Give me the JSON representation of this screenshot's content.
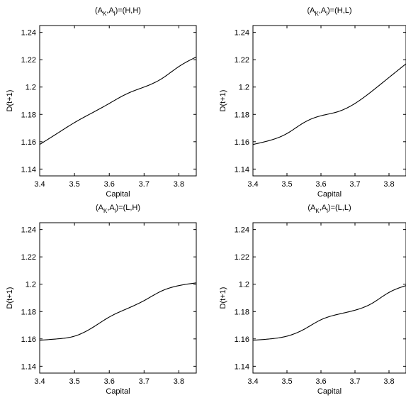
{
  "chart_data": [
    {
      "type": "line",
      "title": {
        "pre": "(A",
        "sub1": "K",
        "mid": ",A",
        "sub2": "l",
        "post": ")=(H,H)"
      },
      "xlabel": "Capital",
      "ylabel": "D(t+1)",
      "xlim": [
        3.4,
        3.85
      ],
      "ylim": [
        1.135,
        1.245
      ],
      "xticks": [
        "3.4",
        "3.5",
        "3.6",
        "3.7",
        "3.8"
      ],
      "yticks": [
        "1.14",
        "1.16",
        "1.18",
        "1.2",
        "1.22",
        "1.24"
      ],
      "grid": false,
      "series": [
        {
          "x": [
            3.4,
            3.45,
            3.5,
            3.55,
            3.6,
            3.65,
            3.7,
            3.75,
            3.8,
            3.85
          ],
          "y": [
            1.158,
            1.166,
            1.174,
            1.181,
            1.188,
            1.195,
            1.2,
            1.206,
            1.215,
            1.222
          ]
        }
      ]
    },
    {
      "type": "line",
      "title": {
        "pre": "(A",
        "sub1": "K",
        "mid": ",A",
        "sub2": "l",
        "post": ")=(H,L)"
      },
      "xlabel": "Capital",
      "ylabel": "D(t+1)",
      "xlim": [
        3.4,
        3.85
      ],
      "ylim": [
        1.135,
        1.245
      ],
      "xticks": [
        "3.4",
        "3.5",
        "3.6",
        "3.7",
        "3.8"
      ],
      "yticks": [
        "1.14",
        "1.16",
        "1.18",
        "1.2",
        "1.22",
        "1.24"
      ],
      "grid": false,
      "series": [
        {
          "x": [
            3.4,
            3.45,
            3.5,
            3.55,
            3.6,
            3.65,
            3.7,
            3.75,
            3.8,
            3.85
          ],
          "y": [
            1.158,
            1.161,
            1.166,
            1.174,
            1.179,
            1.182,
            1.188,
            1.197,
            1.207,
            1.217
          ]
        }
      ]
    },
    {
      "type": "line",
      "title": {
        "pre": "(A",
        "sub1": "K",
        "mid": ",A",
        "sub2": "l",
        "post": ")=(L,H)"
      },
      "xlabel": "Capital",
      "ylabel": "D(t+1)",
      "xlim": [
        3.4,
        3.85
      ],
      "ylim": [
        1.135,
        1.245
      ],
      "xticks": [
        "3.4",
        "3.5",
        "3.6",
        "3.7",
        "3.8"
      ],
      "yticks": [
        "1.14",
        "1.16",
        "1.18",
        "1.2",
        "1.22",
        "1.24"
      ],
      "grid": false,
      "series": [
        {
          "x": [
            3.4,
            3.45,
            3.5,
            3.55,
            3.6,
            3.65,
            3.7,
            3.75,
            3.8,
            3.85
          ],
          "y": [
            1.159,
            1.16,
            1.162,
            1.168,
            1.176,
            1.182,
            1.188,
            1.195,
            1.199,
            1.201
          ]
        }
      ]
    },
    {
      "type": "line",
      "title": {
        "pre": "(A",
        "sub1": "K",
        "mid": ",A",
        "sub2": "l",
        "post": ")=(L,L)"
      },
      "xlabel": "Capital",
      "ylabel": "D(t+1)",
      "xlim": [
        3.4,
        3.85
      ],
      "ylim": [
        1.135,
        1.245
      ],
      "xticks": [
        "3.4",
        "3.5",
        "3.6",
        "3.7",
        "3.8"
      ],
      "yticks": [
        "1.14",
        "1.16",
        "1.18",
        "1.2",
        "1.22",
        "1.24"
      ],
      "grid": false,
      "series": [
        {
          "x": [
            3.4,
            3.45,
            3.5,
            3.55,
            3.6,
            3.65,
            3.7,
            3.75,
            3.8,
            3.85
          ],
          "y": [
            1.159,
            1.16,
            1.162,
            1.167,
            1.174,
            1.178,
            1.181,
            1.186,
            1.194,
            1.199
          ]
        }
      ]
    }
  ]
}
